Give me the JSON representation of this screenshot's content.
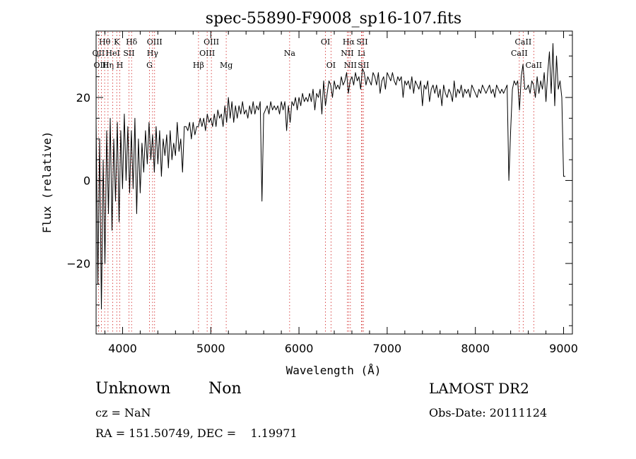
{
  "chart_data": {
    "type": "line",
    "title": "spec-55890-F9008_sp16-107.fits",
    "xlabel": "Wavelength (Å)",
    "ylabel": "Flux (relative)",
    "xlim": [
      3700,
      9100
    ],
    "ylim": [
      -37,
      36
    ],
    "xticks": [
      4000,
      5000,
      6000,
      7000,
      8000,
      9000
    ],
    "yticks": [
      -20,
      0,
      20
    ],
    "x_minor_step": 200,
    "y_minor_step": 5,
    "grid": false,
    "line_color": "#000000",
    "marker_color": "#d02020",
    "series": [
      {
        "x": [
          3700,
          3720,
          3740,
          3760,
          3780,
          3800,
          3820,
          3840,
          3860,
          3880,
          3900,
          3920,
          3940,
          3960,
          3980,
          4000,
          4020,
          4040,
          4060,
          4080,
          4100,
          4120,
          4140,
          4160,
          4180,
          4200,
          4220,
          4240,
          4260,
          4280,
          4300,
          4320,
          4340,
          4360,
          4380,
          4400,
          4420,
          4440,
          4460,
          4480,
          4500,
          4520,
          4540,
          4560,
          4580,
          4600,
          4620,
          4640,
          4660,
          4680,
          4700,
          4720,
          4740,
          4760,
          4780,
          4800,
          4820,
          4840,
          4860,
          4880,
          4900,
          4920,
          4940,
          4960,
          4980,
          5000,
          5020,
          5040,
          5060,
          5080,
          5100,
          5120,
          5140,
          5160,
          5180,
          5200,
          5220,
          5240,
          5260,
          5280,
          5300,
          5320,
          5340,
          5360,
          5380,
          5400,
          5420,
          5440,
          5460,
          5480,
          5500,
          5520,
          5540,
          5560,
          5580,
          5600,
          5620,
          5640,
          5660,
          5680,
          5700,
          5720,
          5740,
          5760,
          5780,
          5800,
          5820,
          5840,
          5860,
          5880,
          5900,
          5920,
          5940,
          5960,
          5980,
          6000,
          6020,
          6040,
          6060,
          6080,
          6100,
          6120,
          6140,
          6160,
          6180,
          6200,
          6220,
          6240,
          6260,
          6280,
          6300,
          6320,
          6340,
          6360,
          6380,
          6400,
          6420,
          6440,
          6460,
          6480,
          6500,
          6520,
          6540,
          6560,
          6580,
          6600,
          6620,
          6640,
          6660,
          6680,
          6700,
          6720,
          6740,
          6760,
          6780,
          6800,
          6820,
          6840,
          6860,
          6880,
          6900,
          6920,
          6940,
          6960,
          6980,
          7000,
          7020,
          7040,
          7060,
          7080,
          7100,
          7120,
          7140,
          7160,
          7180,
          7200,
          7220,
          7240,
          7260,
          7280,
          7300,
          7320,
          7340,
          7360,
          7380,
          7400,
          7420,
          7440,
          7460,
          7480,
          7500,
          7520,
          7540,
          7560,
          7580,
          7600,
          7620,
          7640,
          7660,
          7680,
          7700,
          7720,
          7740,
          7760,
          7780,
          7800,
          7820,
          7840,
          7860,
          7880,
          7900,
          7920,
          7940,
          7960,
          7980,
          8000,
          8020,
          8040,
          8060,
          8080,
          8100,
          8120,
          8140,
          8160,
          8180,
          8200,
          8220,
          8240,
          8260,
          8280,
          8300,
          8320,
          8340,
          8360,
          8380,
          8400,
          8420,
          8440,
          8460,
          8480,
          8500,
          8520,
          8540,
          8560,
          8580,
          8600,
          8620,
          8640,
          8660,
          8680,
          8700,
          8720,
          8740,
          8760,
          8780,
          8800,
          8820,
          8840,
          8860,
          8880,
          8900,
          8920,
          8940,
          8960,
          8980,
          9000,
          9020
        ],
        "y": [
          14,
          -25,
          10,
          -31,
          5,
          -20,
          12,
          -8,
          15,
          -12,
          10,
          -5,
          14,
          -10,
          12,
          -2,
          16,
          0,
          13,
          -3,
          12,
          -2,
          15,
          -8,
          10,
          -3,
          9,
          2,
          12,
          4,
          14,
          5,
          11,
          2,
          13,
          4,
          12,
          1,
          10,
          6,
          11,
          3,
          12,
          5,
          9,
          6,
          14,
          7,
          10,
          2,
          13,
          13,
          12,
          14,
          10,
          14,
          11,
          13,
          13,
          15,
          13,
          15,
          12,
          16,
          14,
          15,
          13,
          16,
          13,
          17,
          15,
          16,
          13,
          18,
          14,
          20,
          15,
          19,
          14,
          18,
          15,
          18,
          16,
          19,
          16,
          17,
          15,
          18,
          16,
          19,
          16,
          18,
          17,
          19,
          -5,
          16,
          17,
          18,
          16,
          19,
          17,
          18,
          17,
          18,
          16,
          19,
          17,
          19,
          12,
          18,
          14,
          19,
          18,
          20,
          17,
          20,
          18,
          21,
          19,
          20,
          19,
          21,
          19,
          22,
          17,
          21,
          20,
          22,
          16,
          24,
          18,
          21,
          24,
          23,
          20,
          24,
          22,
          23,
          22,
          25,
          23,
          24,
          26,
          21,
          24,
          25,
          23,
          26,
          24,
          25,
          22,
          27,
          26,
          23,
          25,
          24,
          23,
          26,
          25,
          23,
          26,
          21,
          24,
          25,
          22,
          26,
          25,
          24,
          26,
          24,
          23,
          25,
          24,
          25,
          20,
          24,
          23,
          24,
          22,
          25,
          21,
          24,
          23,
          22,
          24,
          18,
          23,
          22,
          24,
          19,
          22,
          23,
          21,
          23,
          20,
          22,
          18,
          23,
          21,
          20,
          22,
          21,
          19,
          24,
          20,
          22,
          21,
          23,
          20,
          22,
          21,
          22,
          20,
          23,
          22,
          21,
          20,
          22,
          21,
          23,
          22,
          21,
          22,
          23,
          21,
          22,
          20,
          23,
          22,
          21,
          22,
          21,
          22,
          23,
          0,
          12,
          22,
          24,
          23,
          24,
          17,
          25,
          28,
          22,
          22,
          23,
          21,
          24,
          23,
          20,
          25,
          21,
          24,
          22,
          26,
          19,
          26,
          31,
          21,
          33,
          18,
          30,
          22,
          24,
          20,
          1,
          1
        ]
      }
    ],
    "line_markers": [
      {
        "label": "Hθ",
        "x": 3797,
        "row": 1
      },
      {
        "label": "OII",
        "x": 3727,
        "row": 2
      },
      {
        "label": "OIII",
        "x": 3760,
        "row": 3
      },
      {
        "label": "Hη",
        "x": 3835,
        "row": 3
      },
      {
        "label": "HeI",
        "x": 3889,
        "row": 2
      },
      {
        "label": "K",
        "x": 3934,
        "row": 1
      },
      {
        "label": "H",
        "x": 3969,
        "row": 3
      },
      {
        "label": "SII",
        "x": 4072,
        "row": 2
      },
      {
        "label": "Hδ",
        "x": 4102,
        "row": 1
      },
      {
        "label": "OIII",
        "x": 4363,
        "row": 1
      },
      {
        "label": "Hγ",
        "x": 4340,
        "row": 2
      },
      {
        "label": "G",
        "x": 4305,
        "row": 3
      },
      {
        "label": "Hβ",
        "x": 4861,
        "row": 3
      },
      {
        "label": "OIII",
        "x": 5007,
        "row": 1
      },
      {
        "label": "OIII",
        "x": 4959,
        "row": 2
      },
      {
        "label": "Mg",
        "x": 5175,
        "row": 3
      },
      {
        "label": "Na",
        "x": 5894,
        "row": 2
      },
      {
        "label": "OI",
        "x": 6300,
        "row": 1
      },
      {
        "label": "OI",
        "x": 6363,
        "row": 3
      },
      {
        "label": "Hα",
        "x": 6563,
        "row": 1
      },
      {
        "label": "NII",
        "x": 6548,
        "row": 2
      },
      {
        "label": "NII",
        "x": 6583,
        "row": 3
      },
      {
        "label": "SII",
        "x": 6716,
        "row": 1
      },
      {
        "label": "Li",
        "x": 6708,
        "row": 2
      },
      {
        "label": "SII",
        "x": 6731,
        "row": 3
      },
      {
        "label": "CaII",
        "x": 8542,
        "row": 1
      },
      {
        "label": "CaII",
        "x": 8498,
        "row": 2
      },
      {
        "label": "CaII",
        "x": 8662,
        "row": 3
      }
    ]
  },
  "info": {
    "object_class": "Unknown",
    "object_subclass": "Non",
    "survey": "LAMOST DR2",
    "cz": "cz = NaN",
    "obs_date": "Obs-Date: 20111124",
    "radec": "RA = 151.50749, DEC =    1.19971"
  }
}
